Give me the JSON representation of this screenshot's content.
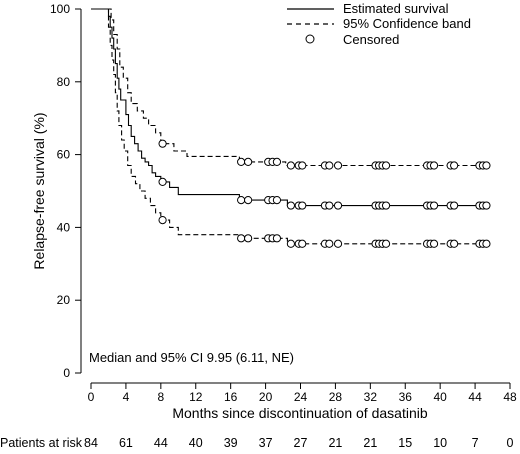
{
  "chart_data": {
    "type": "line",
    "title": "",
    "xlabel": "Months since discontinuation of dasatinib",
    "ylabel": "Relapse-free survival (%)",
    "xlim": [
      0,
      48
    ],
    "ylim": [
      0,
      100
    ],
    "x_ticks": [
      "0",
      "4",
      "8",
      "12",
      "16",
      "20",
      "24",
      "28",
      "32",
      "36",
      "40",
      "44",
      "48"
    ],
    "y_ticks": [
      "0",
      "20",
      "40",
      "60",
      "80",
      "100"
    ],
    "grid": false,
    "legend_position": "top-right",
    "legend": {
      "estimate": "Estimated survival",
      "band": "95% Confidence band",
      "censored": "Censored"
    },
    "annotation": "Median and 95% CI 9.95 (6.11, NE)",
    "risk_table": {
      "label": "Patients at risk",
      "values": [
        "84",
        "61",
        "44",
        "40",
        "39",
        "37",
        "27",
        "21",
        "21",
        "15",
        "10",
        "7",
        "0"
      ]
    },
    "series": [
      {
        "name": "Estimated survival",
        "style": "solid",
        "steps": [
          [
            0,
            100
          ],
          [
            1.8,
            100
          ],
          [
            2.0,
            98
          ],
          [
            2.2,
            95
          ],
          [
            2.4,
            92
          ],
          [
            2.6,
            89
          ],
          [
            2.8,
            85
          ],
          [
            3.0,
            81
          ],
          [
            3.2,
            78
          ],
          [
            3.4,
            75
          ],
          [
            4.0,
            71
          ],
          [
            4.3,
            68
          ],
          [
            4.6,
            65
          ],
          [
            5.0,
            63
          ],
          [
            5.4,
            61
          ],
          [
            5.8,
            59
          ],
          [
            6.2,
            58
          ],
          [
            6.6,
            57
          ],
          [
            7.0,
            55
          ],
          [
            7.4,
            54
          ],
          [
            8.0,
            52.5
          ],
          [
            9.0,
            51
          ],
          [
            10.0,
            49
          ],
          [
            17.0,
            47.5
          ],
          [
            21.5,
            47.5
          ],
          [
            22.5,
            46
          ],
          [
            45.5,
            46
          ]
        ],
        "censored": [
          [
            8.2,
            52.5
          ],
          [
            17.2,
            47.5
          ],
          [
            18.0,
            47.5
          ],
          [
            20.3,
            47.5
          ],
          [
            20.8,
            47.5
          ],
          [
            21.3,
            47.5
          ],
          [
            22.9,
            46
          ],
          [
            23.8,
            46
          ],
          [
            24.2,
            46
          ],
          [
            26.8,
            46
          ],
          [
            27.3,
            46
          ],
          [
            28.3,
            46
          ],
          [
            32.6,
            46
          ],
          [
            33.0,
            46
          ],
          [
            33.4,
            46
          ],
          [
            33.8,
            46
          ],
          [
            38.5,
            46
          ],
          [
            38.9,
            46
          ],
          [
            39.3,
            46
          ],
          [
            41.2,
            46
          ],
          [
            41.6,
            46
          ],
          [
            44.5,
            46
          ],
          [
            44.9,
            46
          ],
          [
            45.3,
            46
          ]
        ]
      },
      {
        "name": "95% Confidence band",
        "style": "dashed",
        "steps": [
          [
            0,
            100
          ],
          [
            2.0,
            100
          ],
          [
            2.3,
            97
          ],
          [
            2.6,
            93
          ],
          [
            3.0,
            89
          ],
          [
            3.3,
            84
          ],
          [
            3.7,
            81
          ],
          [
            4.2,
            77
          ],
          [
            4.6,
            74
          ],
          [
            5.3,
            72
          ],
          [
            6.0,
            70
          ],
          [
            6.6,
            68
          ],
          [
            7.4,
            66
          ],
          [
            8.0,
            63
          ],
          [
            9.5,
            61
          ],
          [
            11.0,
            59.5
          ],
          [
            17.0,
            58
          ],
          [
            21.5,
            58
          ],
          [
            22.3,
            57
          ],
          [
            45.5,
            57
          ]
        ],
        "censored": [
          [
            8.2,
            63
          ],
          [
            17.2,
            58
          ],
          [
            18.0,
            58
          ],
          [
            20.3,
            58
          ],
          [
            20.8,
            58
          ],
          [
            21.3,
            58
          ],
          [
            22.9,
            57
          ],
          [
            23.8,
            57
          ],
          [
            24.2,
            57
          ],
          [
            26.8,
            57
          ],
          [
            27.3,
            57
          ],
          [
            28.3,
            57
          ],
          [
            32.6,
            57
          ],
          [
            33.0,
            57
          ],
          [
            33.4,
            57
          ],
          [
            33.8,
            57
          ],
          [
            38.5,
            57
          ],
          [
            38.9,
            57
          ],
          [
            39.3,
            57
          ],
          [
            41.2,
            57
          ],
          [
            41.6,
            57
          ],
          [
            44.5,
            57
          ],
          [
            44.9,
            57
          ],
          [
            45.3,
            57
          ]
        ]
      },
      {
        "name": "95% Confidence band",
        "style": "dashed",
        "steps": [
          [
            0,
            100
          ],
          [
            1.8,
            100
          ],
          [
            2.0,
            95
          ],
          [
            2.2,
            90
          ],
          [
            2.4,
            86
          ],
          [
            2.6,
            82
          ],
          [
            2.8,
            77
          ],
          [
            3.0,
            72
          ],
          [
            3.2,
            68
          ],
          [
            3.5,
            64
          ],
          [
            3.8,
            61
          ],
          [
            4.2,
            57
          ],
          [
            4.6,
            54
          ],
          [
            5.1,
            52
          ],
          [
            5.6,
            50
          ],
          [
            6.2,
            48
          ],
          [
            6.8,
            46
          ],
          [
            7.4,
            44
          ],
          [
            8.0,
            42
          ],
          [
            9.0,
            40
          ],
          [
            10.0,
            38
          ],
          [
            17.0,
            37
          ],
          [
            21.5,
            37
          ],
          [
            22.5,
            35.5
          ],
          [
            45.5,
            35.5
          ]
        ],
        "censored": [
          [
            8.2,
            42
          ],
          [
            17.2,
            37
          ],
          [
            18.0,
            37
          ],
          [
            20.3,
            37
          ],
          [
            20.8,
            37
          ],
          [
            21.3,
            37
          ],
          [
            22.9,
            35.5
          ],
          [
            23.8,
            35.5
          ],
          [
            24.2,
            35.5
          ],
          [
            26.8,
            35.5
          ],
          [
            27.3,
            35.5
          ],
          [
            28.3,
            35.5
          ],
          [
            32.6,
            35.5
          ],
          [
            33.0,
            35.5
          ],
          [
            33.4,
            35.5
          ],
          [
            33.8,
            35.5
          ],
          [
            38.5,
            35.5
          ],
          [
            38.9,
            35.5
          ],
          [
            39.3,
            35.5
          ],
          [
            41.2,
            35.5
          ],
          [
            41.6,
            35.5
          ],
          [
            44.5,
            35.5
          ],
          [
            44.9,
            35.5
          ],
          [
            45.3,
            35.5
          ]
        ]
      }
    ]
  }
}
